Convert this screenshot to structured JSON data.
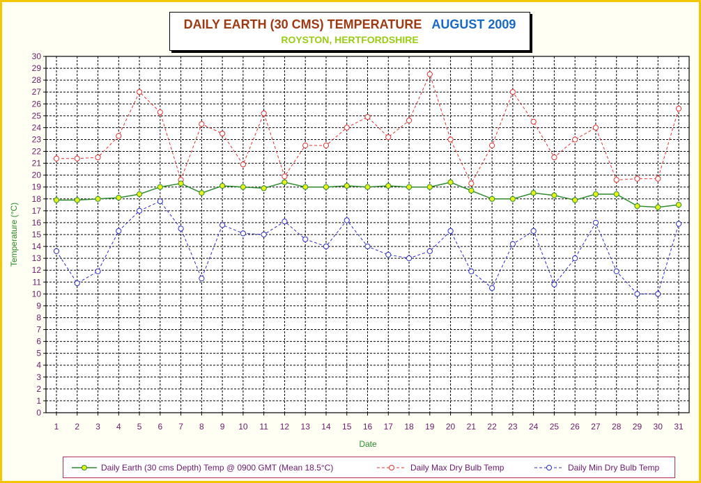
{
  "title": {
    "main": "DAILY EARTH (30 CMS) TEMPERATURE",
    "month": "AUGUST 2009",
    "subtitle": "ROYSTON, HERTFORDSHIRE"
  },
  "colors": {
    "frame": "#f2c600",
    "axis_label": "#2a8a2a",
    "tick_label": "#6a1a6a",
    "earth": "#2e8b2e",
    "earth_marker": "#e6f21a",
    "max": "#e03030",
    "min": "#2a2ac8"
  },
  "chart_data": {
    "type": "line",
    "xlabel": "Date",
    "ylabel": "Temperature (°C)",
    "ylim": [
      0,
      30
    ],
    "grid": true,
    "legend_position": "bottom",
    "x": [
      1,
      2,
      3,
      4,
      5,
      6,
      7,
      8,
      9,
      10,
      11,
      12,
      13,
      14,
      15,
      16,
      17,
      18,
      19,
      20,
      21,
      22,
      23,
      24,
      25,
      26,
      27,
      28,
      29,
      30,
      31
    ],
    "series": [
      {
        "name": "Daily Earth (30 cms Depth) Temp @ 0900 GMT (Mean 18.5°C)",
        "style": "solid",
        "values": [
          17.9,
          17.9,
          18.0,
          18.1,
          18.4,
          19.0,
          19.3,
          18.5,
          19.1,
          19.0,
          18.9,
          19.4,
          19.0,
          19.0,
          19.1,
          19.0,
          19.1,
          19.0,
          19.0,
          19.4,
          18.7,
          18.0,
          18.0,
          18.5,
          18.3,
          17.9,
          18.4,
          18.4,
          17.4,
          17.3,
          17.5
        ]
      },
      {
        "name": "Daily Max Dry Bulb Temp",
        "style": "dashed",
        "values": [
          21.4,
          21.4,
          21.5,
          23.3,
          27.0,
          25.3,
          19.6,
          24.3,
          23.5,
          20.9,
          25.2,
          19.9,
          22.5,
          22.5,
          24.0,
          24.9,
          23.2,
          24.6,
          28.5,
          23.0,
          19.3,
          22.5,
          27.0,
          24.5,
          21.5,
          23.0,
          24.0,
          19.6,
          19.7,
          19.7,
          25.6
        ]
      },
      {
        "name": "Daily Min Dry Bulb Temp",
        "style": "dashed",
        "values": [
          13.6,
          10.9,
          11.9,
          15.3,
          17.0,
          17.8,
          15.5,
          11.3,
          15.8,
          15.1,
          15.0,
          16.1,
          14.6,
          14.0,
          16.2,
          14.0,
          13.3,
          13.0,
          13.6,
          15.3,
          11.9,
          10.5,
          14.2,
          15.3,
          10.8,
          13.0,
          16.0,
          11.9,
          10.0,
          10.0,
          15.9
        ]
      }
    ]
  }
}
